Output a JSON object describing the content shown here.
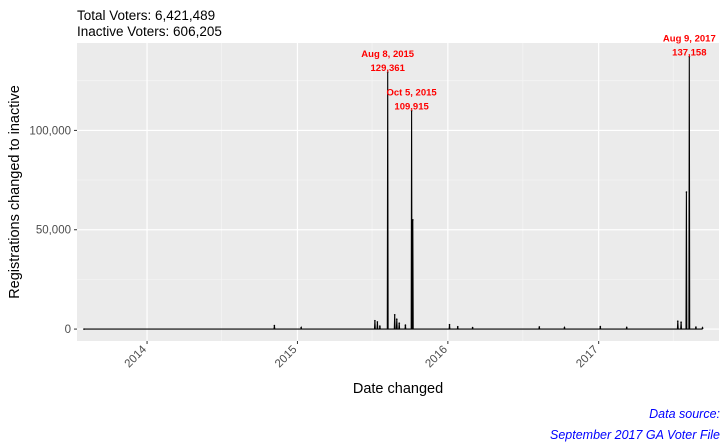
{
  "header": {
    "line1": "Total Voters: 6,421,489",
    "line2": "Inactive Voters: 606,205"
  },
  "caption": {
    "line1": "Data source:",
    "line2": "September 2017 GA Voter File",
    "color": "#0000ff"
  },
  "chart_data": {
    "type": "line",
    "title": "",
    "xlabel": "Date changed",
    "ylabel": "Registrations changed to inactive",
    "x_range": [
      "2013-07-15",
      "2017-10-20"
    ],
    "ylim": [
      -6000,
      144000
    ],
    "x_ticks": [
      {
        "date": "2014-01-01",
        "label": "2014"
      },
      {
        "date": "2015-01-01",
        "label": "2015"
      },
      {
        "date": "2016-01-01",
        "label": "2016"
      },
      {
        "date": "2017-01-01",
        "label": "2017"
      }
    ],
    "y_ticks": [
      {
        "value": 0,
        "label": "0"
      },
      {
        "value": 50000,
        "label": "50,000"
      },
      {
        "value": 100000,
        "label": "100,000"
      }
    ],
    "grid": true,
    "panel_color": "#ebebeb",
    "line_color": "#000000",
    "annotation_color": "#ff0000",
    "series": [
      {
        "points": [
          [
            "2013-08-01",
            0
          ],
          [
            "2014-11-06",
            1800
          ],
          [
            "2015-01-10",
            700
          ],
          [
            "2015-07-08",
            4200
          ],
          [
            "2015-07-14",
            3600
          ],
          [
            "2015-07-20",
            1500
          ],
          [
            "2015-08-08",
            129361
          ],
          [
            "2015-08-25",
            7200
          ],
          [
            "2015-08-30",
            5000
          ],
          [
            "2015-09-05",
            3000
          ],
          [
            "2015-09-20",
            2000
          ],
          [
            "2015-10-05",
            109915
          ],
          [
            "2015-10-08",
            55000
          ],
          [
            "2016-01-05",
            2200
          ],
          [
            "2016-01-25",
            1200
          ],
          [
            "2016-03-01",
            800
          ],
          [
            "2016-08-10",
            1100
          ],
          [
            "2016-10-10",
            700
          ],
          [
            "2017-01-05",
            1300
          ],
          [
            "2017-03-10",
            900
          ],
          [
            "2017-07-12",
            4000
          ],
          [
            "2017-07-20",
            3500
          ],
          [
            "2017-08-02",
            69000
          ],
          [
            "2017-08-09",
            137158
          ],
          [
            "2017-08-25",
            1000
          ],
          [
            "2017-09-10",
            600
          ]
        ]
      }
    ],
    "annotations": [
      {
        "date": "2015-08-08",
        "value": 129361,
        "label_date": "Aug 8, 2015",
        "label_value": "129,361"
      },
      {
        "date": "2015-10-05",
        "value": 109915,
        "label_date": "Oct 5, 2015",
        "label_value": "109,915"
      },
      {
        "date": "2017-08-09",
        "value": 137158,
        "label_date": "Aug 9, 2017",
        "label_value": "137,158"
      }
    ]
  }
}
